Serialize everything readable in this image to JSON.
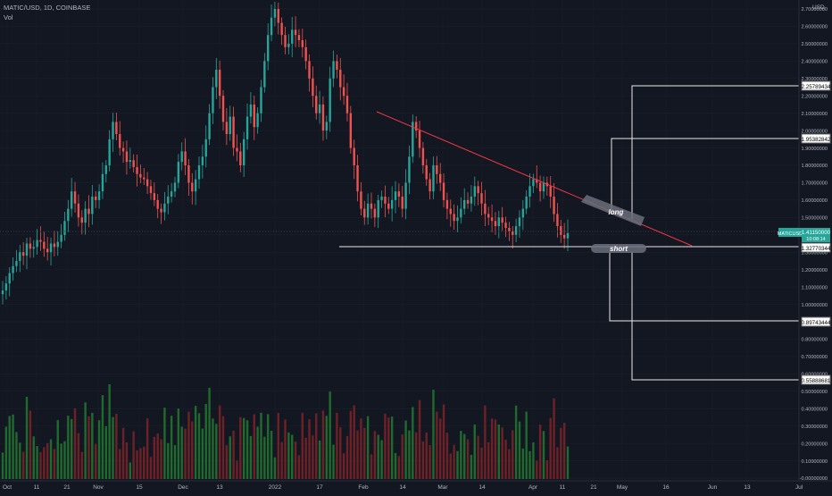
{
  "header": {
    "symbol_info": "MATIC/USD, 1D, COINBASE",
    "vol_label": "Vol",
    "currency": "USD"
  },
  "price_axis": {
    "ticks": [
      "2.70000000",
      "2.60000000",
      "2.50000000",
      "2.40000000",
      "2.30000000",
      "2.20000000",
      "2.10000000",
      "2.00000000",
      "1.90000000",
      "1.80000000",
      "1.70000000",
      "1.60000000",
      "1.50000000",
      "1.40000000",
      "1.30000000",
      "1.20000000",
      "1.10000000",
      "1.00000000",
      "0.90000000",
      "0.80000000",
      "0.70000000",
      "0.60000000",
      "0.50000000",
      "0.40000000",
      "0.30000000",
      "0.20000000",
      "0.10000000",
      "-0.00000000"
    ],
    "price_badge_symbol": "MATICUSD",
    "price_badge_value": "1.41150000",
    "price_badge_countdown": "10:08:14",
    "level_labels": [
      "2.25789434",
      "1.95382842",
      "1.32770344",
      "0.89743444",
      "0.55888681"
    ]
  },
  "time_axis": {
    "labels": [
      "Oct",
      "11",
      "21",
      "Nov",
      "15",
      "Dec",
      "13",
      "2022",
      "17",
      "Feb",
      "14",
      "Mar",
      "14",
      "Apr",
      "11",
      "21",
      "May",
      "16",
      "Jun",
      "13",
      "Jul"
    ]
  },
  "annotations": {
    "long_label": "long",
    "short_label": "short"
  },
  "colors": {
    "background": "#131722",
    "up": "#26a69a",
    "down": "#ef5350",
    "vol_up": "#1f6b2e",
    "vol_down": "#6e2126",
    "trendline": "#f23645",
    "target_box": "#e8e8e8",
    "grid": "#2a2e39"
  },
  "chart_data": {
    "type": "candlestick",
    "title": "MATIC/USD, 1D, COINBASE",
    "ylim": [
      -0.05,
      2.75
    ],
    "key_levels": {
      "support": 1.3277,
      "long_target_1": 1.9538,
      "long_target_2": 2.2579,
      "short_target_1": 0.8974,
      "short_target_2": 0.5589,
      "last_price": 1.4115
    },
    "trendline": {
      "from": [
        "2022-02-10",
        2.1
      ],
      "to": [
        "2022-05-26",
        1.33
      ]
    },
    "series": [
      {
        "name": "MATIC/USD",
        "note": "approximate daily closes (Oct 2021 – Apr 2022)",
        "closes": [
          1.08,
          1.12,
          1.18,
          1.22,
          1.25,
          1.3,
          1.28,
          1.35,
          1.32,
          1.33,
          1.37,
          1.36,
          1.32,
          1.3,
          1.35,
          1.33,
          1.36,
          1.4,
          1.48,
          1.55,
          1.65,
          1.58,
          1.5,
          1.47,
          1.55,
          1.52,
          1.62,
          1.6,
          1.65,
          1.75,
          1.8,
          1.95,
          2.05,
          1.98,
          1.9,
          1.88,
          1.82,
          1.83,
          1.79,
          1.75,
          1.73,
          1.72,
          1.68,
          1.64,
          1.6,
          1.55,
          1.53,
          1.58,
          1.62,
          1.65,
          1.7,
          1.82,
          1.88,
          1.8,
          1.7,
          1.65,
          1.72,
          1.8,
          1.85,
          1.95,
          2.1,
          2.25,
          2.35,
          2.2,
          2.05,
          1.98,
          2.08,
          1.9,
          1.88,
          1.8,
          1.95,
          2.08,
          2.15,
          2.02,
          2.1,
          2.25,
          2.4,
          2.55,
          2.65,
          2.7,
          2.62,
          2.55,
          2.48,
          2.5,
          2.58,
          2.55,
          2.52,
          2.48,
          2.4,
          2.3,
          2.2,
          2.1,
          2.15,
          2.0,
          2.05,
          2.3,
          2.4,
          2.35,
          2.25,
          2.2,
          2.1,
          1.9,
          1.8,
          1.65,
          1.55,
          1.5,
          1.58,
          1.55,
          1.5,
          1.6,
          1.62,
          1.58,
          1.55,
          1.6,
          1.65,
          1.62,
          1.55,
          1.7,
          1.85,
          2.05,
          2.0,
          1.9,
          1.8,
          1.72,
          1.65,
          1.8,
          1.75,
          1.7,
          1.6,
          1.55,
          1.52,
          1.48,
          1.5,
          1.55,
          1.6,
          1.58,
          1.62,
          1.68,
          1.64,
          1.58,
          1.52,
          1.5,
          1.48,
          1.45,
          1.5,
          1.47,
          1.44,
          1.42,
          1.4,
          1.45,
          1.5,
          1.55,
          1.62,
          1.68,
          1.72,
          1.7,
          1.65,
          1.7,
          1.68,
          1.62,
          1.52,
          1.45,
          1.4,
          1.38,
          1.41
        ]
      }
    ]
  }
}
